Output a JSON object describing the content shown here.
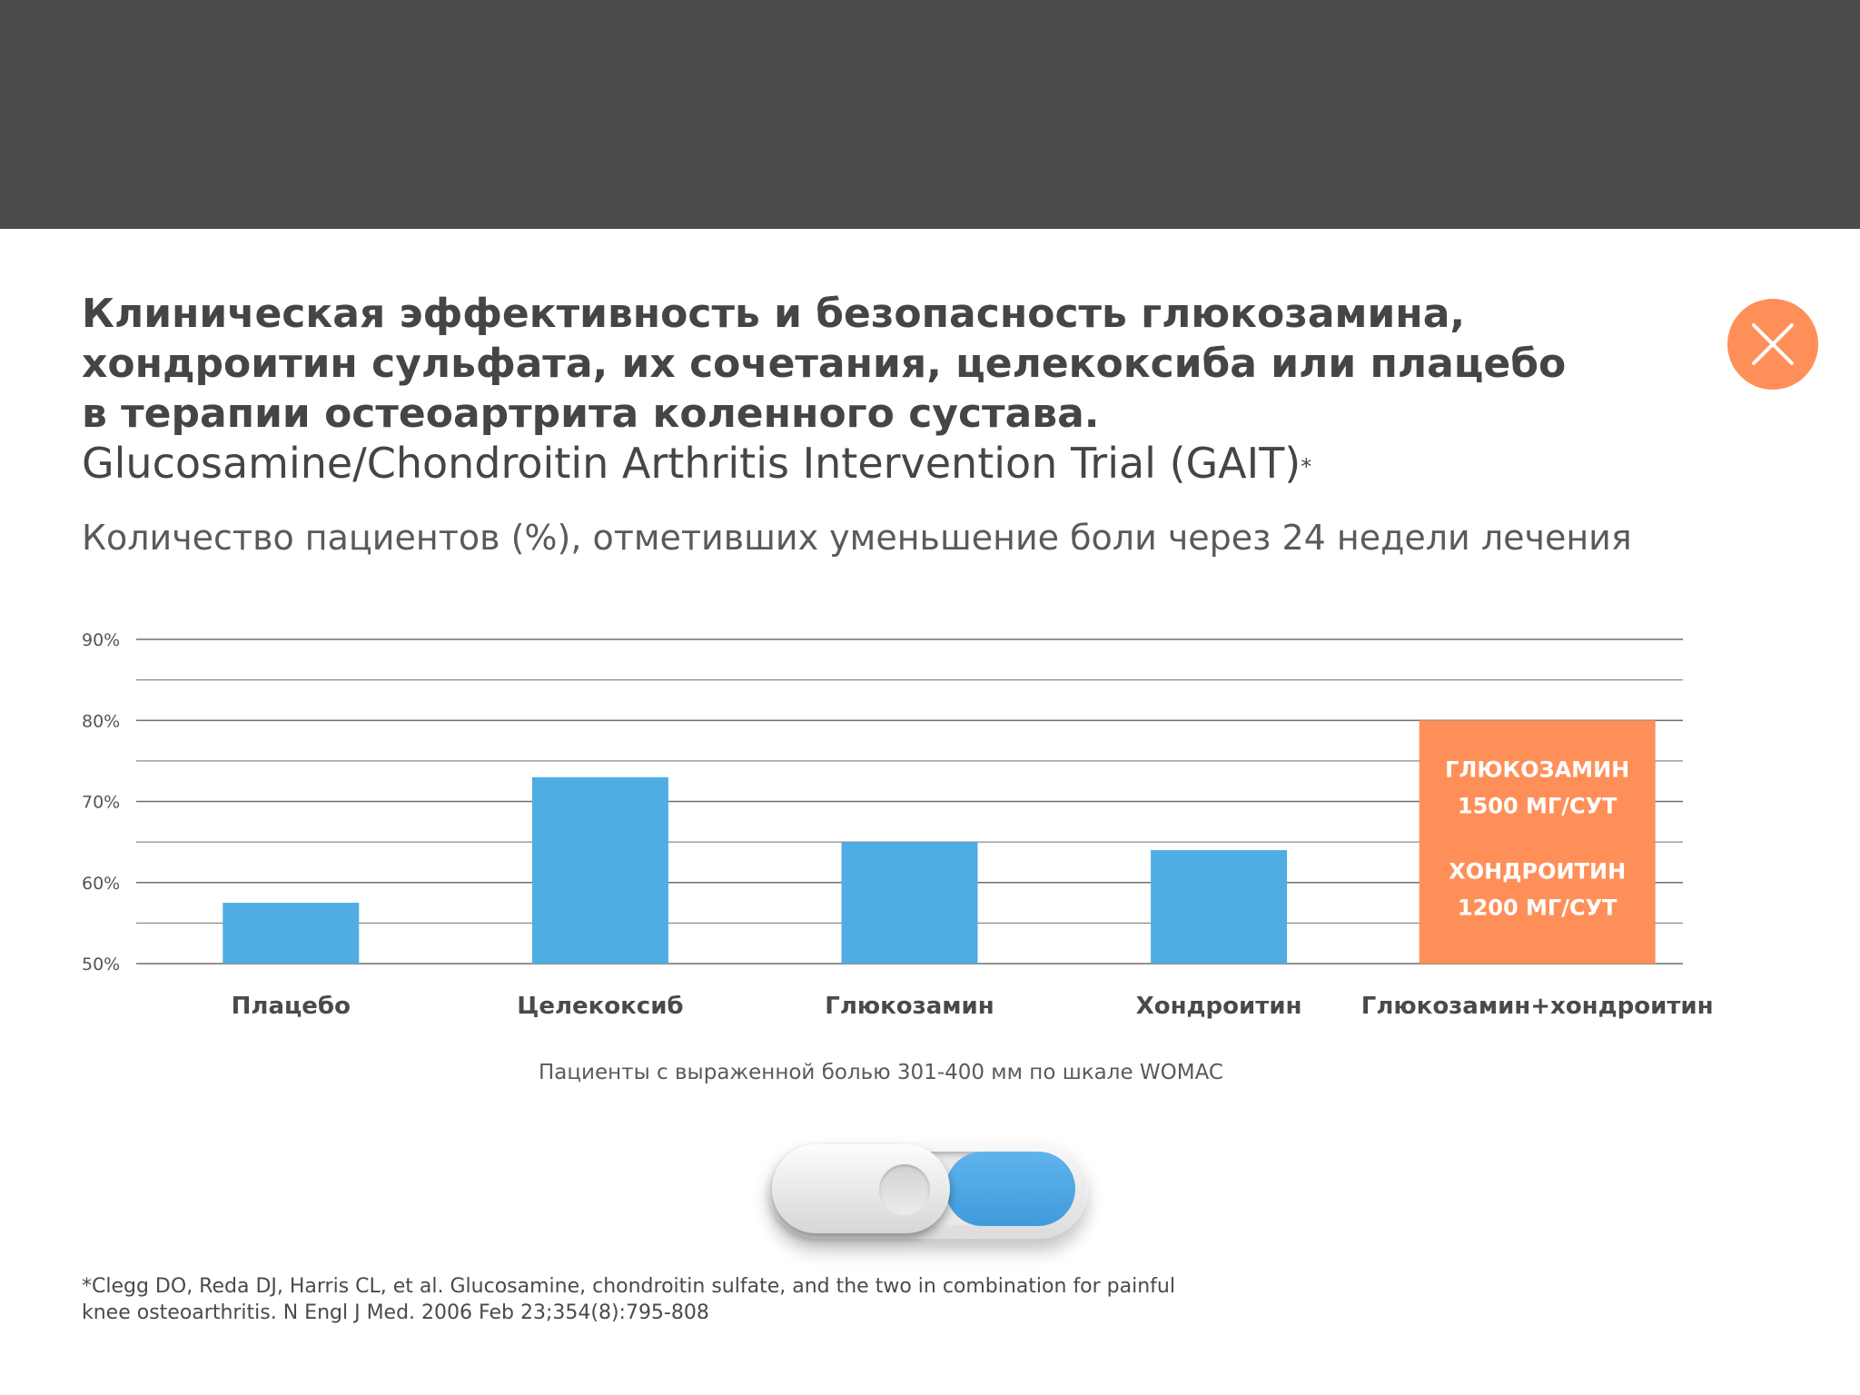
{
  "header": {
    "title_lines": [
      "Клиническая эффективность и безопасность глюкозамина,",
      "хондроитин сульфата, их сочетания, целекоксиба или плацебо",
      "в терапии остеоартрита коленного сустава.",
      "Glucosamine/Chondroitin Arthritis Intervention Trial (GAIT)"
    ],
    "title_marker": "*",
    "subtitle": "Количество пациентов (%), отметивших уменьшение боли через 24 недели лечения",
    "close_icon": "close-icon"
  },
  "colors": {
    "bar": "#4fade3",
    "highlight": "#ff8f59",
    "top_bar": "#4b4b4b",
    "title": "#454545"
  },
  "chart_data": {
    "type": "bar",
    "categories": [
      "Плацебо",
      "Целекоксиб",
      "Глюкозамин",
      "Хондроитин",
      "Глюкозамин+хондроитин"
    ],
    "values": [
      57.5,
      73,
      65,
      64,
      80
    ],
    "highlight_index": 4,
    "ylim": [
      50,
      90
    ],
    "yticks": [
      50,
      60,
      70,
      80,
      90
    ],
    "ytick_labels": [
      "50%",
      "60%",
      "70%",
      "80%",
      "90%"
    ],
    "minor_gridlines": [
      55,
      65,
      75,
      85
    ],
    "grid": true,
    "highlight_bar_text": [
      "ГЛЮКОЗАМИН",
      "1500 МГ/СУТ",
      "ХОНДРОИТИН",
      "1200 МГ/СУТ"
    ],
    "note": "Пациенты с выраженной болью 301-400 мм по шкале WOMAC"
  },
  "toggle": {
    "state": "on",
    "fill_fraction": 0.44
  },
  "footnote": {
    "lines": [
      "*Clegg DO, Reda DJ, Harris CL, et al. Glucosamine, chondroitin sulfate, and the two in combination for painful",
      "knee osteoarthritis. N Engl J Med. 2006 Feb 23;354(8):795-808"
    ]
  }
}
